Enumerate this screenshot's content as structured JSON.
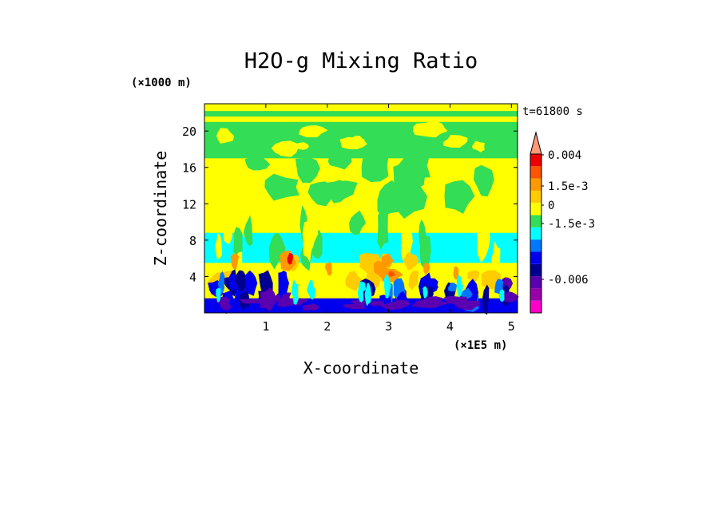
{
  "chart_data": {
    "type": "heatmap",
    "title": "H2O-g Mixing Ratio",
    "xlabel": "X-coordinate",
    "ylabel": "Z-coordinate",
    "x_unit": "(×1E5 m)",
    "y_unit": "(×1000 m)",
    "time_label": "t=61800 s",
    "xlim": [
      0,
      5.1
    ],
    "ylim": [
      0,
      23
    ],
    "x_ticks": [
      1,
      2,
      3,
      4,
      5
    ],
    "y_ticks": [
      4,
      8,
      12,
      16,
      20
    ],
    "colorbar": {
      "labels": [
        {
          "value": 0.004,
          "text": "0.004"
        },
        {
          "value": 0.0015,
          "text": "1.5e-3"
        },
        {
          "value": 0,
          "text": "0"
        },
        {
          "value": -0.0015,
          "text": "-1.5e-3"
        },
        {
          "value": -0.006,
          "text": "-0.006"
        }
      ],
      "bands": [
        {
          "color": "#ff00cc",
          "range": "< -0.006"
        },
        {
          "color": "#9900aa",
          "range": "-0.006 .. -0.004"
        },
        {
          "color": "#5a00b0",
          "range": "-0.004 .. -0.002"
        },
        {
          "color": "#000090",
          "range": "-0.002 .. -0.0015"
        },
        {
          "color": "#0000ee",
          "range": "-0.0015 .. -0.001"
        },
        {
          "color": "#0077ff",
          "range": "-0.001 .. -0.0005"
        },
        {
          "color": "#00ffff",
          "range": "-0.0005 .. 0"
        },
        {
          "color": "#33dd55",
          "range": "0 .. 0.0005"
        },
        {
          "color": "#ffff00",
          "range": "0.0005 .. 0.001"
        },
        {
          "color": "#ffcc00",
          "range": "0.001 .. 0.0015"
        },
        {
          "color": "#ff9900",
          "range": "0.0015 .. 0.002"
        },
        {
          "color": "#ff5500",
          "range": "0.002 .. 0.003"
        },
        {
          "color": "#ee0000",
          "range": "0.003 .. 0.004"
        },
        {
          "color": "#ff9977",
          "range": "> 0.004"
        }
      ]
    },
    "field_regions": [
      {
        "z": [
          0,
          2.5
        ],
        "dominant": "#0000ee",
        "notes": "blue/purple plumes near surface"
      },
      {
        "z": [
          2.5,
          5.5
        ],
        "dominant": "#ffff00",
        "notes": "mixed with orange/red anomalies"
      },
      {
        "z": [
          5.5,
          9
        ],
        "dominant": "#00ffff",
        "notes": "cyan layer with yellow/green plumes"
      },
      {
        "z": [
          9,
          17
        ],
        "dominant": "#ffff00",
        "notes": "yellow with green patches"
      },
      {
        "z": [
          17,
          21
        ],
        "dominant": "#33dd55",
        "notes": "green layer"
      },
      {
        "z": [
          21,
          23
        ],
        "dominant": "#ffff00",
        "notes": "yellow top with green bands"
      }
    ]
  }
}
